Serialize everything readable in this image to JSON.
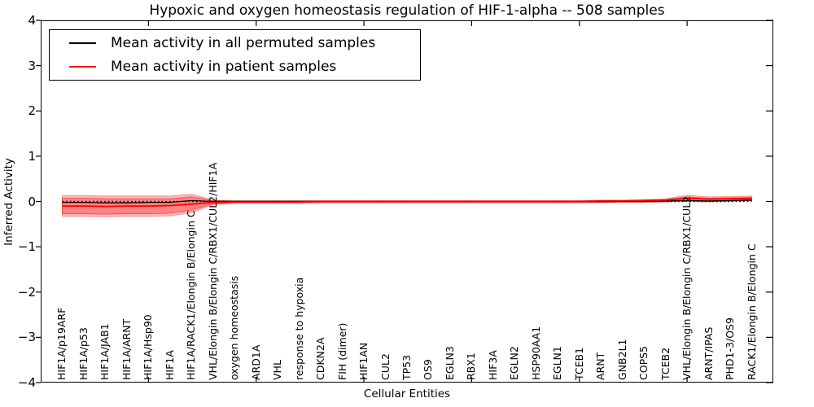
{
  "figure": {
    "title": "Hypoxic and oxygen homeostasis regulation of HIF-1-alpha -- 508 samples",
    "xlabel": "Cellular Entities",
    "ylabel": "Inferred Activity"
  },
  "legend": {
    "entries": [
      {
        "label": "Mean activity in all permuted samples",
        "color": "#000000"
      },
      {
        "label": "Mean activity in patient samples",
        "color": "#ff0000"
      }
    ]
  },
  "chart_data": {
    "type": "line",
    "title": "Hypoxic and oxygen homeostasis regulation of HIF-1-alpha -- 508 samples",
    "xlabel": "Cellular Entities",
    "ylabel": "Inferred Activity",
    "ylim": [
      -4,
      4
    ],
    "yticks": [
      4,
      3,
      2,
      1,
      0,
      -1,
      -2,
      -3,
      -4
    ],
    "xticks_at": [
      5,
      10,
      15,
      20,
      25,
      30
    ],
    "grid": false,
    "legend_position": "upper left",
    "zero_line": {
      "style": "dotted",
      "color": "#000000"
    },
    "categories": [
      "HIF1A/p19ARF",
      "HIF1A/p53",
      "HIF1A/JAB1",
      "HIF1A/ARNT",
      "HIF1A/Hsp90",
      "HIF1A",
      "HIF1A/RACK1/Elongin B/Elongin C",
      "VHL/Elongin B/Elongin C/RBX1/CUL2/HIF1A",
      "oxygen homeostasis",
      "ARD1A",
      "VHL",
      "response to hypoxia",
      "CDKN2A",
      "FIH (dimer)",
      "HIF1AN",
      "CUL2",
      "TP53",
      "OS9",
      "EGLN3",
      "RBX1",
      "HIF3A",
      "EGLN2",
      "HSP90AA1",
      "EGLN1",
      "TCEB1",
      "ARNT",
      "GNB2L1",
      "COPS5",
      "TCEB2",
      "VHL/Elongin B/Elongin C/RBX1/CUL2",
      "ARNT/IPAS",
      "PHD1-3/OS9",
      "RACK1/Elongin B/Elongin C"
    ],
    "series": [
      {
        "name": "Mean activity in all permuted samples",
        "color": "#000000",
        "width": 1.3,
        "values": [
          -0.02,
          -0.02,
          -0.03,
          -0.03,
          -0.02,
          -0.02,
          0.02,
          0,
          0,
          0,
          0,
          0,
          0,
          0,
          0,
          0,
          0,
          0,
          0,
          0,
          0,
          0,
          0,
          0,
          0,
          0,
          0,
          0,
          0.01,
          0.02,
          0.01,
          0.02,
          0.03
        ]
      },
      {
        "name": "Mean activity in patient samples",
        "color": "#ff0000",
        "width": 1.8,
        "values": [
          -0.1,
          -0.1,
          -0.11,
          -0.1,
          -0.1,
          -0.09,
          -0.06,
          -0.02,
          -0.01,
          -0.01,
          -0.01,
          -0.01,
          0,
          0,
          0,
          0,
          0,
          0,
          0,
          0,
          0,
          0,
          0,
          0,
          0,
          0.01,
          0.01,
          0.02,
          0.03,
          0.07,
          0.05,
          0.06,
          0.07
        ]
      }
    ],
    "bands": [
      {
        "name": "patient-spread-outer",
        "fill": "rgba(255,0,0,0.28)",
        "edge": "rgba(230,30,30,0.35)",
        "hi": [
          0.13,
          0.13,
          0.12,
          0.12,
          0.12,
          0.12,
          0.16,
          0.03,
          0.02,
          0.02,
          0.02,
          0.02,
          0.02,
          0.02,
          0.02,
          0.02,
          0.02,
          0.02,
          0.02,
          0.02,
          0.02,
          0.02,
          0.02,
          0.02,
          0.02,
          0.03,
          0.03,
          0.04,
          0.06,
          0.14,
          0.1,
          0.11,
          0.12
        ],
        "lo": [
          -0.33,
          -0.33,
          -0.34,
          -0.33,
          -0.33,
          -0.32,
          -0.25,
          -0.07,
          -0.04,
          -0.04,
          -0.04,
          -0.04,
          -0.03,
          -0.03,
          -0.03,
          -0.03,
          -0.03,
          -0.03,
          -0.03,
          -0.03,
          -0.03,
          -0.03,
          -0.03,
          -0.03,
          -0.03,
          -0.03,
          -0.02,
          -0.02,
          -0.01,
          0.0,
          -0.01,
          0.0,
          0.01
        ]
      },
      {
        "name": "patient-spread-inner",
        "fill": "rgba(255,0,0,0.28)",
        "edge": "rgba(220,0,0,0.45)",
        "hi": [
          0.07,
          0.07,
          0.06,
          0.06,
          0.06,
          0.06,
          0.1,
          0.02,
          0.01,
          0.01,
          0.01,
          0.01,
          0.01,
          0.01,
          0.01,
          0.01,
          0.01,
          0.01,
          0.01,
          0.01,
          0.01,
          0.01,
          0.01,
          0.01,
          0.01,
          0.02,
          0.02,
          0.03,
          0.04,
          0.1,
          0.07,
          0.08,
          0.09
        ],
        "lo": [
          -0.27,
          -0.27,
          -0.28,
          -0.27,
          -0.27,
          -0.26,
          -0.19,
          -0.05,
          -0.02,
          -0.02,
          -0.02,
          -0.02,
          -0.02,
          -0.02,
          -0.02,
          -0.02,
          -0.02,
          -0.02,
          -0.02,
          -0.02,
          -0.02,
          -0.02,
          -0.02,
          -0.02,
          -0.02,
          -0.02,
          -0.01,
          -0.01,
          0.0,
          0.01,
          0.0,
          0.01,
          0.02
        ]
      }
    ]
  }
}
